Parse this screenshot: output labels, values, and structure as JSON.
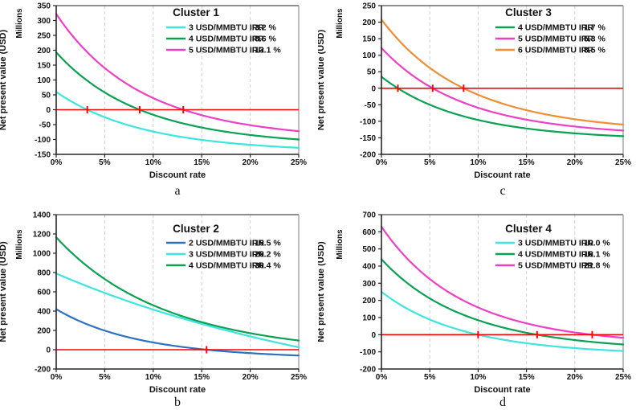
{
  "shared": {
    "xlabel": "Discount rate",
    "ylabel": "Net present value (USD)",
    "units_label": "Millions",
    "x_ticks": [
      "0%",
      "5%",
      "10%",
      "15%",
      "20%",
      "25%"
    ],
    "x_range_percent": [
      0,
      25
    ],
    "gridline_positions_percent": [
      5,
      10,
      15,
      20
    ],
    "colors": {
      "zero_line": "#ff0000",
      "gridline": "#cfcfcf",
      "plot_right_border": "#9c9c9c",
      "plot_top_border": "#4a4a4a",
      "axis": "#262626",
      "text": "#111111",
      "background": "#ffffff"
    }
  },
  "chart_data": [
    {
      "type": "line",
      "panel_letter": "a",
      "grid_position": "top-left",
      "title": "Cluster 1",
      "xlabel": "Discount rate",
      "ylabel": "Net present value (USD)",
      "units_label": "Millions",
      "x_ticks": [
        "0%",
        "5%",
        "10%",
        "15%",
        "20%",
        "25%"
      ],
      "x_range_percent": [
        0,
        25
      ],
      "ylim": [
        -150,
        350
      ],
      "ytick_step": 50,
      "zero_line": true,
      "series": [
        {
          "label": "3 USD/MMBTU IRR",
          "irr_text": "3.2 %",
          "irr_percent": 3.2,
          "color": "#3fe4de",
          "npv_millions_at_0pct": 60,
          "npv_millions_at_25pct": -128
        },
        {
          "label": "4 USD/MMBTU IRR",
          "irr_text": "8.6 %",
          "irr_percent": 8.6,
          "color": "#0aa152",
          "npv_millions_at_0pct": 193,
          "npv_millions_at_25pct": -100
        },
        {
          "label": "5 USD/MMBTU IRR",
          "irr_text": "13.1 %",
          "irr_percent": 13.1,
          "color": "#ee40c4",
          "npv_millions_at_0pct": 322,
          "npv_millions_at_25pct": -72
        }
      ]
    },
    {
      "type": "line",
      "panel_letter": "c",
      "grid_position": "top-right",
      "title": "Cluster 3",
      "xlabel": "Discount rate",
      "ylabel": "Net present value (USD)",
      "units_label": "Millions",
      "x_ticks": [
        "0%",
        "5%",
        "10%",
        "15%",
        "20%",
        "25%"
      ],
      "x_range_percent": [
        0,
        25
      ],
      "ylim": [
        -200,
        250
      ],
      "ytick_step": 50,
      "zero_line": true,
      "series": [
        {
          "label": "4 USD/MMBTU IRR",
          "irr_text": "1.7 %",
          "irr_percent": 1.7,
          "color": "#0aa152",
          "npv_millions_at_0pct": 35,
          "npv_millions_at_25pct": -145
        },
        {
          "label": "5 USD/MMBTU IRR",
          "irr_text": "5.3 %",
          "irr_percent": 5.3,
          "color": "#ee40c4",
          "npv_millions_at_0pct": 122,
          "npv_millions_at_25pct": -128
        },
        {
          "label": "6 USD/MMBTU IRR",
          "irr_text": "8.5 %",
          "irr_percent": 8.5,
          "color": "#ee8e35",
          "npv_millions_at_0pct": 208,
          "npv_millions_at_25pct": -110
        }
      ]
    },
    {
      "type": "line",
      "panel_letter": "b",
      "grid_position": "bottom-left",
      "title": "Cluster 2",
      "xlabel": "Discount rate",
      "ylabel": "Net present value (USD)",
      "units_label": "Millions",
      "x_ticks": [
        "0%",
        "5%",
        "10%",
        "15%",
        "20%",
        "25%"
      ],
      "x_range_percent": [
        0,
        25
      ],
      "ylim": [
        -200,
        1400
      ],
      "ytick_step": 200,
      "zero_line": true,
      "series": [
        {
          "label": "2 USD/MMBTU IRR",
          "irr_text": "15.5 %",
          "irr_percent": 15.5,
          "color": "#2d72c0",
          "npv_millions_at_0pct": 420,
          "npv_millions_at_25pct": -60
        },
        {
          "label": "3 USD/MMBTU IRR",
          "irr_text": "26.2 %",
          "irr_percent": 26.2,
          "color": "#3fe4de",
          "npv_millions_at_0pct": 790,
          "npv_millions_at_25pct": 25
        },
        {
          "label": "4 USD/MMBTU IRR",
          "irr_text": "36.4 %",
          "irr_percent": 36.4,
          "color": "#0aa152",
          "npv_millions_at_0pct": 1165,
          "npv_millions_at_25pct": 95
        }
      ]
    },
    {
      "type": "line",
      "panel_letter": "d",
      "grid_position": "bottom-right",
      "title": "Cluster 4",
      "xlabel": "Discount rate",
      "ylabel": "Net present value (USD)",
      "units_label": "Millions",
      "x_ticks": [
        "0%",
        "5%",
        "10%",
        "15%",
        "20%",
        "25%"
      ],
      "x_range_percent": [
        0,
        25
      ],
      "ylim": [
        -200,
        700
      ],
      "ytick_step": 100,
      "zero_line": true,
      "series": [
        {
          "label": "3 USD/MMBTU IRR",
          "irr_text": "10.0 %",
          "irr_percent": 10.0,
          "color": "#3fe4de",
          "npv_millions_at_0pct": 250,
          "npv_millions_at_25pct": -95
        },
        {
          "label": "4 USD/MMBTU IRR",
          "irr_text": "16.1 %",
          "irr_percent": 16.1,
          "color": "#0aa152",
          "npv_millions_at_0pct": 440,
          "npv_millions_at_25pct": -57
        },
        {
          "label": "5 USD/MMBTU IRR",
          "irr_text": "21.8 %",
          "irr_percent": 21.8,
          "color": "#ee40c4",
          "npv_millions_at_0pct": 630,
          "npv_millions_at_25pct": -18
        }
      ]
    }
  ]
}
